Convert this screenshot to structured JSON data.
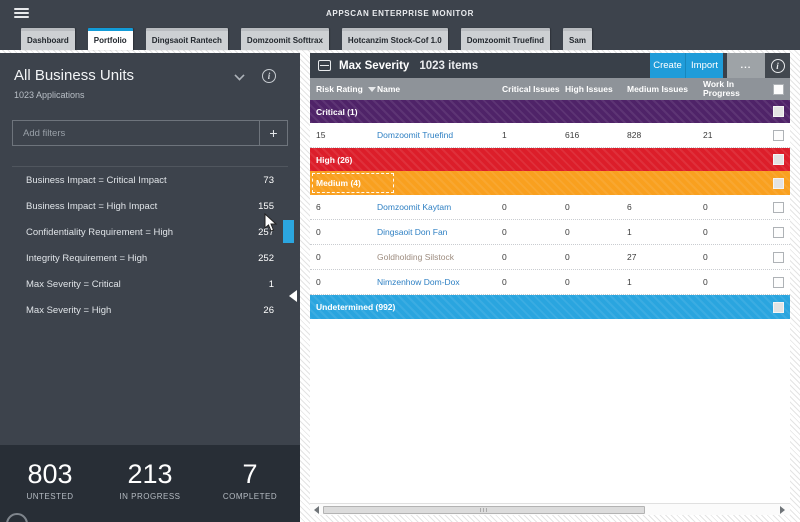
{
  "topbar": {
    "title": "APPSCAN ENTERPRISE MONITOR"
  },
  "tabs": [
    {
      "label": "Dashboard",
      "active": false
    },
    {
      "label": "Portfolio",
      "active": true
    },
    {
      "label": "Dingsaoit Rantech",
      "active": false
    },
    {
      "label": "Domzoomit Softtrax",
      "active": false
    },
    {
      "label": "Hotcanzim Stock-Cof 1.0",
      "active": false
    },
    {
      "label": "Domzoomit Truefind",
      "active": false
    },
    {
      "label": "Sam",
      "active": false
    }
  ],
  "sidebar": {
    "title": "All Business Units",
    "subtitle": "1023 Applications",
    "filter_placeholder": "Add filters",
    "add_button_label": "+",
    "filters": [
      {
        "label": "Business Impact = Critical Impact",
        "count": "73"
      },
      {
        "label": "Business Impact = High Impact",
        "count": "155"
      },
      {
        "label": "Confidentiality Requirement = High",
        "count": "257"
      },
      {
        "label": "Integrity Requirement = High",
        "count": "252"
      },
      {
        "label": "Max Severity = Critical",
        "count": "1"
      },
      {
        "label": "Max Severity = High",
        "count": "26"
      }
    ],
    "stats": [
      {
        "value": "803",
        "label": "UNTESTED"
      },
      {
        "value": "213",
        "label": "IN PROGRESS"
      },
      {
        "value": "7",
        "label": "COMPLETED"
      }
    ]
  },
  "panel": {
    "title": "Max Severity",
    "items_count": "1023 items",
    "buttons": {
      "create": "Create",
      "import": "Import",
      "more": "...",
      "info": "i"
    },
    "columns": [
      "Risk Rating",
      "Name",
      "Critical Issues",
      "High Issues",
      "Medium Issues",
      "Work In Progress"
    ],
    "rows": [
      {
        "type": "band",
        "variant": "critical",
        "label": "Critical (1)",
        "color": "#4f2368",
        "height": 23,
        "focused": false
      },
      {
        "type": "app",
        "risk": "15",
        "name": "Domzoomit Truefind",
        "critical": "1",
        "high": "616",
        "medium": "828",
        "wip": "21",
        "name_color": "#2f80c3",
        "height": 25
      },
      {
        "type": "band",
        "variant": "high",
        "label": "High (26)",
        "color": "#dc1e2a",
        "height": 23,
        "focused": false
      },
      {
        "type": "band",
        "variant": "medium",
        "label": "Medium (4)",
        "color": "#f9a01f",
        "height": 24,
        "focused": true
      },
      {
        "type": "app",
        "risk": "6",
        "name": "Domzoomit Kaytam",
        "critical": "0",
        "high": "0",
        "medium": "6",
        "wip": "0",
        "name_color": "#2f80c3",
        "height": 25
      },
      {
        "type": "app",
        "risk": "0",
        "name": "Dingsaoit Don Fan",
        "critical": "0",
        "high": "0",
        "medium": "1",
        "wip": "0",
        "name_color": "#2f80c3",
        "height": 25
      },
      {
        "type": "app",
        "risk": "0",
        "name": "Goldholding Silstock",
        "critical": "0",
        "high": "0",
        "medium": "27",
        "wip": "0",
        "name_color": "#9d8c7f",
        "height": 25
      },
      {
        "type": "app",
        "risk": "0",
        "name": "Nimzenhow Dom-Dox",
        "critical": "0",
        "high": "0",
        "medium": "1",
        "wip": "0",
        "name_color": "#2f80c3",
        "height": 25
      },
      {
        "type": "band",
        "variant": "undetermined",
        "label": "Undetermined (992)",
        "color": "#2aa5df",
        "height": 24,
        "focused": false
      }
    ]
  },
  "colors": {
    "chrome_dark": "#3d434c",
    "stats_bg": "#282e36",
    "panel_header": "#394049",
    "column_header": "#8e9399",
    "accent_blue": "#1f9cd9",
    "band_critical": "#4f2368",
    "band_high": "#dc1e2a",
    "band_medium": "#f9a01f",
    "band_undetermined": "#2aa5df",
    "link": "#2f80c3"
  }
}
